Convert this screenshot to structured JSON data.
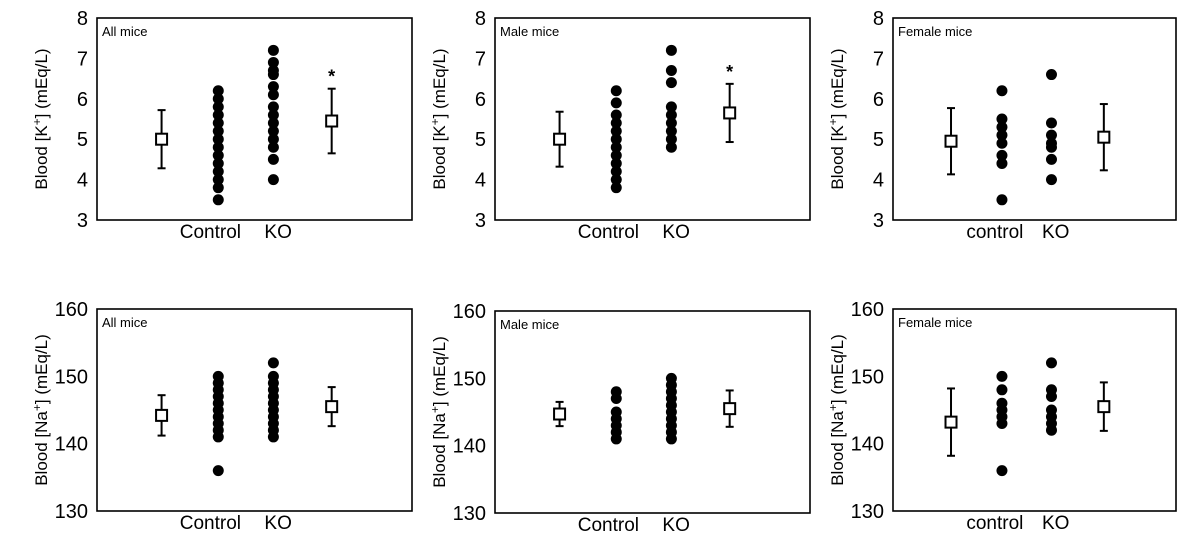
{
  "figure": {
    "panels": [
      {
        "panel_title": "All mice",
        "ylabel": "Blood [K+] (mEq/L)",
        "ylabel_base": "Blood [K",
        "ylabel_super": "+",
        "ylabel_tail": "] (mEq/L)",
        "ylim": [
          3,
          8
        ],
        "yticks": [
          "3",
          "4",
          "5",
          "6",
          "7",
          "8"
        ],
        "categories": [
          "Control",
          "KO"
        ]
      },
      {
        "panel_title": "Male mice",
        "ylabel": "Blood [K+] (mEq/L)",
        "ylabel_base": "Blood [K",
        "ylabel_super": "+",
        "ylabel_tail": "] (mEq/L)",
        "ylim": [
          3,
          8
        ],
        "yticks": [
          "3",
          "4",
          "5",
          "6",
          "7",
          "8"
        ],
        "categories": [
          "Control",
          "KO"
        ]
      },
      {
        "panel_title": "Female mice",
        "ylabel": "Blood [K+] (mEq/L)",
        "ylabel_base": "Blood [K",
        "ylabel_super": "+",
        "ylabel_tail": "] (mEq/L)",
        "ylim": [
          3,
          8
        ],
        "yticks": [
          "3",
          "4",
          "5",
          "6",
          "7",
          "8"
        ],
        "categories": [
          "control",
          "KO"
        ]
      },
      {
        "panel_title": "All mice",
        "ylabel": "Blood [Na+] (mEq/L)",
        "ylabel_base": "Blood [Na",
        "ylabel_super": "+",
        "ylabel_tail": "] (mEq/L)",
        "ylim": [
          130,
          160
        ],
        "yticks": [
          "130",
          "140",
          "150",
          "160"
        ],
        "categories": [
          "Control",
          "KO"
        ]
      },
      {
        "panel_title": "Male mice",
        "ylabel": "Blood [Na+] (mEq/L)",
        "ylabel_base": "Blood [Na",
        "ylabel_super": "+",
        "ylabel_tail": "] (mEq/L)",
        "ylim": [
          130,
          160
        ],
        "yticks": [
          "130",
          "140",
          "150",
          "160"
        ],
        "categories": [
          "Control",
          "KO"
        ]
      },
      {
        "panel_title": "Female mice",
        "ylabel": "Blood [Na+] (mEq/L)",
        "ylabel_base": "Blood [Na",
        "ylabel_super": "+",
        "ylabel_tail": "] (mEq/L)",
        "ylim": [
          130,
          160
        ],
        "yticks": [
          "130",
          "140",
          "150",
          "160"
        ],
        "categories": [
          "control",
          "KO"
        ]
      }
    ]
  },
  "chart_data": [
    {
      "type": "scatter",
      "title": "All mice",
      "ylabel": "Blood [K+] (mEq/L)",
      "ylim": [
        3,
        8
      ],
      "categories": [
        "Control",
        "KO"
      ],
      "series": [
        {
          "name": "Control",
          "values": [
            6.2,
            6.0,
            5.8,
            5.6,
            5.4,
            5.2,
            5.0,
            4.8,
            4.6,
            4.4,
            4.2,
            4.0,
            3.8,
            3.5
          ]
        },
        {
          "name": "KO",
          "values": [
            7.2,
            6.9,
            6.7,
            6.6,
            6.3,
            6.1,
            5.8,
            5.6,
            5.4,
            5.2,
            5.0,
            4.8,
            4.5,
            4.0
          ]
        }
      ],
      "summary": [
        {
          "group": "Control",
          "mean": 5.0,
          "error": 0.72
        },
        {
          "group": "KO",
          "mean": 5.45,
          "error": 0.8,
          "annotation": "*"
        }
      ]
    },
    {
      "type": "scatter",
      "title": "Male mice",
      "ylabel": "Blood [K+] (mEq/L)",
      "ylim": [
        3,
        8
      ],
      "categories": [
        "Control",
        "KO"
      ],
      "series": [
        {
          "name": "Control",
          "values": [
            6.2,
            5.9,
            5.6,
            5.4,
            5.2,
            5.0,
            4.8,
            4.6,
            4.4,
            4.2,
            4.0,
            3.8
          ]
        },
        {
          "name": "KO",
          "values": [
            7.2,
            6.7,
            6.4,
            5.8,
            5.6,
            5.4,
            5.2,
            5.0,
            4.8
          ]
        }
      ],
      "summary": [
        {
          "group": "Control",
          "mean": 5.0,
          "error": 0.68
        },
        {
          "group": "KO",
          "mean": 5.65,
          "error": 0.72,
          "annotation": "*"
        }
      ]
    },
    {
      "type": "scatter",
      "title": "Female mice",
      "ylabel": "Blood [K+] (mEq/L)",
      "ylim": [
        3,
        8
      ],
      "categories": [
        "control",
        "KO"
      ],
      "series": [
        {
          "name": "control",
          "values": [
            6.2,
            5.5,
            5.3,
            5.1,
            4.9,
            4.6,
            4.4,
            3.5
          ]
        },
        {
          "name": "KO",
          "values": [
            6.6,
            5.4,
            5.1,
            4.9,
            4.8,
            4.5,
            4.0
          ]
        }
      ],
      "summary": [
        {
          "group": "control",
          "mean": 4.95,
          "error": 0.82
        },
        {
          "group": "KO",
          "mean": 5.05,
          "error": 0.82
        }
      ]
    },
    {
      "type": "scatter",
      "title": "All mice",
      "ylabel": "Blood [Na+] (mEq/L)",
      "ylim": [
        130,
        160
      ],
      "categories": [
        "Control",
        "KO"
      ],
      "series": [
        {
          "name": "Control",
          "values": [
            150,
            149,
            148,
            147,
            146,
            145,
            144,
            143,
            142,
            141,
            136
          ]
        },
        {
          "name": "KO",
          "values": [
            152,
            150,
            149,
            148,
            147,
            146,
            145,
            144,
            143,
            142,
            141
          ]
        }
      ],
      "summary": [
        {
          "group": "Control",
          "mean": 144.2,
          "error": 3.0
        },
        {
          "group": "KO",
          "mean": 145.5,
          "error": 2.9
        }
      ]
    },
    {
      "type": "scatter",
      "title": "Male mice",
      "ylabel": "Blood [Na+] (mEq/L)",
      "ylim": [
        130,
        160
      ],
      "categories": [
        "Control",
        "KO"
      ],
      "series": [
        {
          "name": "Control",
          "values": [
            148,
            147,
            145,
            144,
            143,
            142,
            141
          ]
        },
        {
          "name": "KO",
          "values": [
            150,
            149,
            148,
            147,
            146,
            145,
            144,
            143,
            142,
            141
          ]
        }
      ],
      "summary": [
        {
          "group": "Control",
          "mean": 144.7,
          "error": 1.8
        },
        {
          "group": "KO",
          "mean": 145.5,
          "error": 2.7
        }
      ]
    },
    {
      "type": "scatter",
      "title": "Female mice",
      "ylabel": "Blood [Na+] (mEq/L)",
      "ylim": [
        130,
        160
      ],
      "categories": [
        "control",
        "KO"
      ],
      "series": [
        {
          "name": "control",
          "values": [
            150,
            148,
            146,
            145,
            144,
            143,
            136
          ]
        },
        {
          "name": "KO",
          "values": [
            152,
            148,
            147,
            145,
            144,
            143,
            142
          ]
        }
      ],
      "summary": [
        {
          "group": "control",
          "mean": 143.2,
          "error": 5.0
        },
        {
          "group": "KO",
          "mean": 145.5,
          "error": 3.6
        }
      ]
    }
  ]
}
